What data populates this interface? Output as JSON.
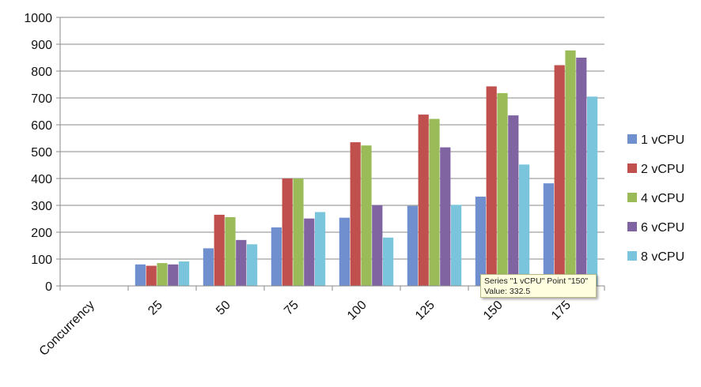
{
  "chart_data": {
    "type": "bar",
    "categories": [
      "Concurrency",
      "25",
      "50",
      "75",
      "100",
      "125",
      "150",
      "175"
    ],
    "series": [
      {
        "name": "1 vCPU",
        "color": "#6f8fcf",
        "values": [
          0,
          80,
          140,
          218,
          254,
          298,
          332.5,
          382
        ]
      },
      {
        "name": "2 vCPU",
        "color": "#c0504d",
        "values": [
          0,
          75,
          265,
          400,
          535,
          638,
          743,
          822
        ]
      },
      {
        "name": "4 vCPU",
        "color": "#9bbb59",
        "values": [
          0,
          85,
          256,
          400,
          523,
          622,
          718,
          877
        ]
      },
      {
        "name": "6 vCPU",
        "color": "#8064a2",
        "values": [
          0,
          80,
          171,
          251,
          301,
          516,
          635,
          850
        ]
      },
      {
        "name": "8 vCPU",
        "color": "#7ac5db",
        "values": [
          0,
          91,
          155,
          275,
          180,
          302,
          452,
          705
        ]
      }
    ],
    "ylim": [
      0,
      1000
    ],
    "yticks": [
      0,
      100,
      200,
      300,
      400,
      500,
      600,
      700,
      800,
      900,
      1000
    ],
    "grid": true,
    "legend_position": "right"
  },
  "tooltip": {
    "line1": "Series \"1 vCPU\" Point \"150\"",
    "line2": "Value: 332.5"
  }
}
